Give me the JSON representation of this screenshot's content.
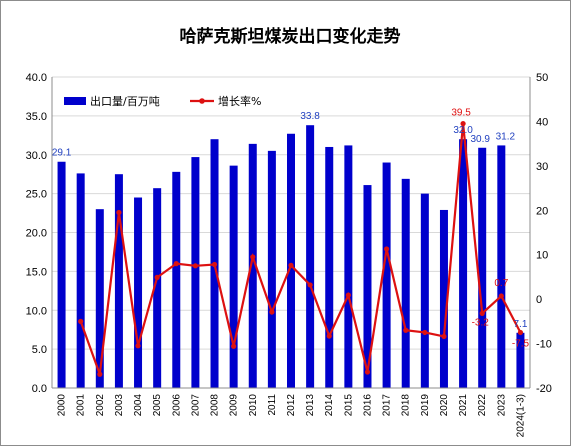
{
  "chart_data": {
    "type": "bar",
    "title": "哈萨克斯坦煤炭出口变化走势",
    "categories": [
      "2000",
      "2001",
      "2002",
      "2003",
      "2004",
      "2005",
      "2006",
      "2007",
      "2008",
      "2009",
      "2010",
      "2011",
      "2012",
      "2013",
      "2014",
      "2015",
      "2016",
      "2017",
      "2018",
      "2019",
      "2020",
      "2021",
      "2022",
      "2023",
      "2024(1-3)"
    ],
    "series": [
      {
        "name": "出口量/百万吨",
        "type": "bar",
        "axis": "left",
        "color": "#0000cc",
        "values": [
          29.1,
          27.6,
          23.0,
          27.5,
          24.5,
          25.7,
          27.8,
          29.7,
          32.0,
          28.6,
          31.4,
          30.5,
          32.7,
          33.8,
          31.0,
          31.2,
          26.1,
          29.0,
          26.9,
          25.0,
          22.9,
          32.0,
          30.9,
          31.2,
          7.1
        ]
      },
      {
        "name": "增长率%",
        "type": "line",
        "axis": "right",
        "color": "#dd1111",
        "values": [
          null,
          -5.0,
          -16.9,
          19.5,
          -10.5,
          4.9,
          8.0,
          7.5,
          7.8,
          -10.6,
          9.5,
          -2.9,
          7.6,
          3.2,
          -8.3,
          0.9,
          -16.4,
          11.3,
          -7.0,
          -7.5,
          -8.4,
          39.5,
          -3.2,
          0.7,
          -7.5
        ]
      }
    ],
    "ylim": [
      0,
      40
    ],
    "yticks": [
      "0.0",
      "5.0",
      "10.0",
      "15.0",
      "20.0",
      "25.0",
      "30.0",
      "35.0",
      "40.0"
    ],
    "y2lim": [
      -20,
      50
    ],
    "y2ticks": [
      "-20",
      "-10",
      "0",
      "10",
      "20",
      "30",
      "40",
      "50"
    ],
    "grid": true,
    "legend_position": "top-left",
    "bar_labels": [
      {
        "index": 0,
        "text": "29.1"
      },
      {
        "index": 13,
        "text": "33.8"
      },
      {
        "index": 21,
        "text": "32.0"
      },
      {
        "index": 22,
        "text": "30.9"
      },
      {
        "index": 23,
        "text": "31.2"
      },
      {
        "index": 24,
        "text": "7.1"
      }
    ],
    "line_labels": [
      {
        "index": 21,
        "text": "39.5"
      },
      {
        "index": 22,
        "text": "-3.2"
      },
      {
        "index": 23,
        "text": "0.7"
      },
      {
        "index": 24,
        "text": "-7.5"
      }
    ]
  },
  "colors": {
    "bar": "#0000cc",
    "line": "#dd1111",
    "bar_label": "#1f3fbf",
    "line_label": "#e01010"
  }
}
